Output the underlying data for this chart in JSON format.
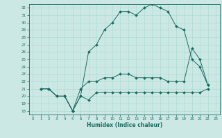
{
  "xlabel": "Humidex (Indice chaleur)",
  "bg_color": "#cce8e4",
  "line_color": "#1a6b60",
  "grid_color": "#a8d8d0",
  "xlim": [
    -0.5,
    23.5
  ],
  "ylim": [
    17.5,
    32.5
  ],
  "xticks": [
    0,
    1,
    2,
    3,
    4,
    5,
    6,
    7,
    8,
    9,
    10,
    11,
    12,
    13,
    14,
    15,
    16,
    17,
    18,
    19,
    20,
    21,
    22,
    23
  ],
  "yticks": [
    18,
    19,
    20,
    21,
    22,
    23,
    24,
    25,
    26,
    27,
    28,
    29,
    30,
    31,
    32
  ],
  "series": [
    {
      "x": [
        1,
        2,
        3,
        4,
        5,
        6,
        7,
        8,
        9,
        10,
        11,
        12,
        13,
        14,
        15,
        16,
        17,
        18,
        19,
        20,
        21,
        22
      ],
      "y": [
        21,
        21,
        20,
        20,
        18,
        20,
        19.5,
        20.5,
        20.5,
        20.5,
        20.5,
        20.5,
        20.5,
        20.5,
        20.5,
        20.5,
        20.5,
        20.5,
        20.5,
        20.5,
        20.5,
        21
      ]
    },
    {
      "x": [
        1,
        2,
        3,
        4,
        5,
        6,
        7,
        8,
        9,
        10,
        11,
        12,
        13,
        14,
        15,
        16,
        17,
        18,
        19,
        20,
        21,
        22
      ],
      "y": [
        21,
        21,
        20,
        20,
        18,
        20,
        26,
        27,
        29,
        30,
        31.5,
        31.5,
        31,
        32,
        32.5,
        32,
        31.5,
        29.5,
        29,
        25,
        24,
        21.5
      ]
    },
    {
      "x": [
        1,
        2,
        3,
        4,
        5,
        6,
        7,
        8,
        9,
        10,
        11,
        12,
        13,
        14,
        15,
        16,
        17,
        18,
        19,
        20,
        21,
        22
      ],
      "y": [
        21,
        21,
        20,
        20,
        18,
        21,
        22,
        22,
        22.5,
        22.5,
        23,
        23,
        22.5,
        22.5,
        22.5,
        22.5,
        22,
        22,
        22,
        26.5,
        25,
        21.5
      ]
    }
  ]
}
